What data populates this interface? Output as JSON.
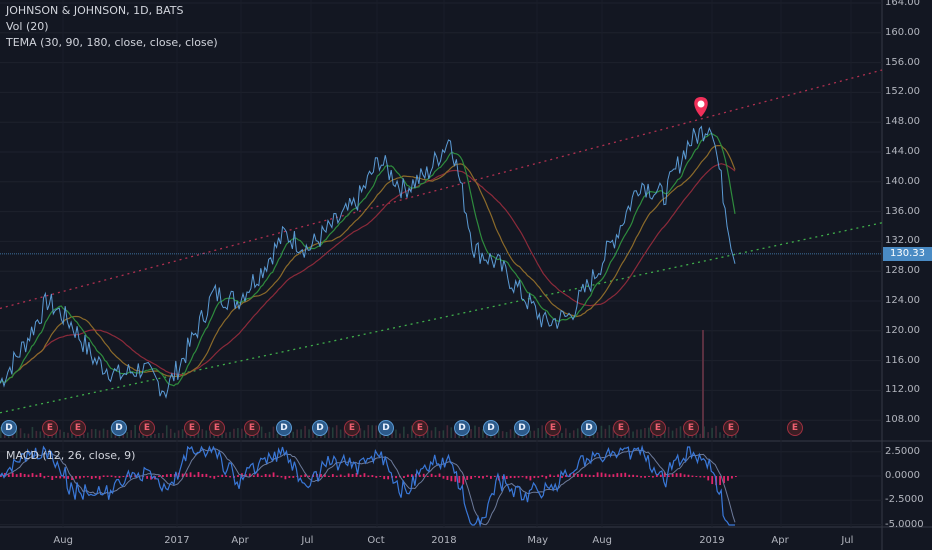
{
  "header": {
    "title": "JOHNSON & JOHNSON, 1D, BATS",
    "vol_label": "Vol (20)",
    "tema_label": "TEMA (30, 90, 180, close, close, close)",
    "macd_label": "MACD (12, 26, close, 9)"
  },
  "price_axis_labels": [
    "164.00",
    "160.00",
    "156.00",
    "152.00",
    "148.00",
    "144.00",
    "140.00",
    "136.00",
    "132.00",
    "128.00",
    "124.00",
    "120.00",
    "116.00",
    "112.00",
    "108.00"
  ],
  "macd_axis_labels": [
    "2.5000",
    "0.0000",
    "-2.5000",
    "-5.0000"
  ],
  "time_axis_labels": [
    "Aug",
    "2017",
    "Apr",
    "Jul",
    "Oct",
    "2018",
    "May",
    "Aug",
    "2019",
    "Apr",
    "Jul"
  ],
  "last_price": "130.33",
  "event_markers": [
    "D",
    "E",
    "E",
    "D",
    "E",
    "E",
    "E",
    "E",
    "D",
    "D",
    "E",
    "D",
    "E",
    "D",
    "D",
    "D",
    "E",
    "D",
    "E",
    "E",
    "E",
    "E",
    "E",
    "D",
    "E",
    "E"
  ],
  "colors": {
    "background": "#131722",
    "price_line": "#5b9bd5",
    "tema_fast": "#2e8b3d",
    "tema_mid": "#8b6a2a",
    "tema_slow": "#8b2a3a",
    "support_trendline": "#3fae4a",
    "resistance_trendline": "#b03050",
    "macd_line": "#3a78d8",
    "signal_line": "#6c7a9a",
    "histogram_neg": "#e0256a",
    "pin": "#f0305a"
  },
  "chart_data": {
    "type": "line",
    "series": [
      {
        "name": "JOHNSON & JOHNSON",
        "x": [
          "2016-06",
          "2016-07",
          "2016-08",
          "2016-09",
          "2016-10",
          "2016-11",
          "2016-12",
          "2017-01",
          "2017-02",
          "2017-03",
          "2017-04",
          "2017-05",
          "2017-06",
          "2017-07",
          "2017-08",
          "2017-09",
          "2017-10",
          "2017-11",
          "2017-12",
          "2018-01",
          "2018-02",
          "2018-03",
          "2018-04",
          "2018-05",
          "2018-06",
          "2018-07",
          "2018-08",
          "2018-09",
          "2018-10",
          "2018-11",
          "2018-12",
          "2019-01"
        ],
        "values": [
          113,
          118,
          124,
          121,
          116,
          114,
          115,
          112,
          118,
          125,
          124,
          128,
          133,
          131,
          134,
          137,
          143,
          139,
          141,
          146,
          131,
          129,
          125,
          121,
          122,
          127,
          133,
          140,
          138,
          145,
          148,
          129
        ]
      }
    ],
    "ylim": [
      106,
      166
    ]
  }
}
